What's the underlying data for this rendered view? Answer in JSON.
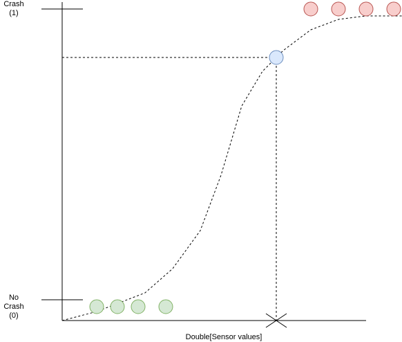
{
  "labels": {
    "crash_line1": "Crash",
    "crash_line2": "(1)",
    "no_crash_line1": "No",
    "no_crash_line2": "Crash",
    "no_crash_line3": "(0)",
    "x_axis": "Double[Sensor values]"
  },
  "colors": {
    "line": "#000000",
    "crash_fill": "#f8cecc",
    "crash_stroke": "#b85450",
    "no_crash_fill": "#d5e8d4",
    "no_crash_stroke": "#82b366",
    "threshold_fill": "#dae8fc",
    "threshold_stroke": "#6c8ebf"
  },
  "points": {
    "crash_count": 4,
    "no_crash_count": 4,
    "threshold_count": 1
  }
}
